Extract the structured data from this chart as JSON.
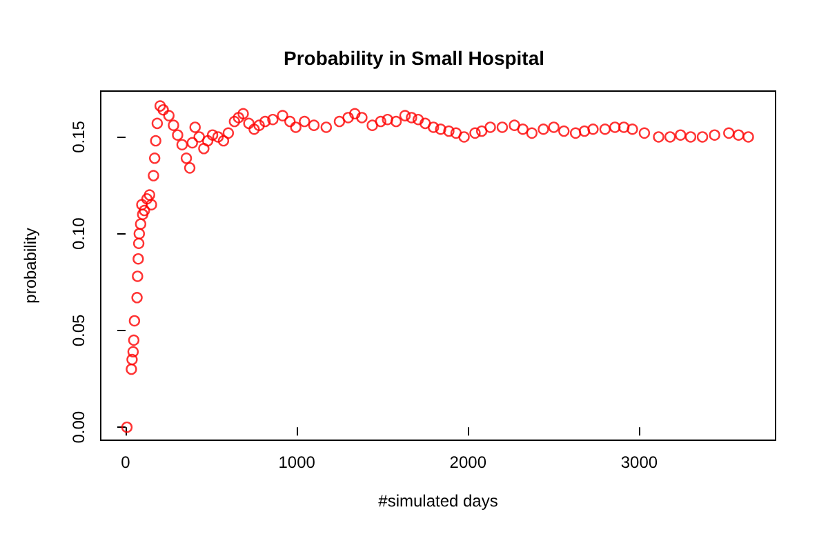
{
  "chart_data": {
    "type": "scatter",
    "title": "Probability in Small Hospital",
    "xlabel": "#simulated days",
    "ylabel": "probability",
    "marker": "circle",
    "x": [
      8,
      34,
      38,
      44,
      48,
      52,
      67,
      70,
      74,
      77,
      80,
      88,
      95,
      100,
      110,
      125,
      140,
      151,
      163,
      170,
      176,
      185,
      202,
      220,
      253,
      280,
      304,
      330,
      355,
      375,
      390,
      406,
      430,
      457,
      480,
      508,
      540,
      572,
      600,
      636,
      660,
      687,
      720,
      751,
      780,
      815,
      860,
      917,
      960,
      994,
      1045,
      1100,
      1172,
      1249,
      1300,
      1339,
      1380,
      1441,
      1490,
      1530,
      1580,
      1632,
      1670,
      1709,
      1750,
      1798,
      1840,
      1888,
      1930,
      1977,
      2041,
      2080,
      2130,
      2200,
      2271,
      2320,
      2373,
      2440,
      2501,
      2560,
      2628,
      2680,
      2730,
      2800,
      2858,
      2910,
      2960,
      3030,
      3113,
      3180,
      3241,
      3300,
      3369,
      3440,
      3523,
      3580,
      3637
    ],
    "series": [
      {
        "color": "#ff0000",
        "values": [
          0,
          0.03,
          0.035,
          0.039,
          0.045,
          0.055,
          0.067,
          0.078,
          0.087,
          0.095,
          0.1,
          0.105,
          0.115,
          0.11,
          0.112,
          0.118,
          0.12,
          0.115,
          0.13,
          0.139,
          0.148,
          0.157,
          0.166,
          0.164,
          0.161,
          0.156,
          0.151,
          0.146,
          0.139,
          0.134,
          0.147,
          0.155,
          0.15,
          0.144,
          0.148,
          0.151,
          0.15,
          0.148,
          0.152,
          0.158,
          0.16,
          0.162,
          0.157,
          0.154,
          0.156,
          0.158,
          0.159,
          0.161,
          0.158,
          0.155,
          0.158,
          0.156,
          0.155,
          0.158,
          0.16,
          0.162,
          0.16,
          0.156,
          0.158,
          0.159,
          0.158,
          0.161,
          0.16,
          0.159,
          0.157,
          0.155,
          0.154,
          0.153,
          0.152,
          0.15,
          0.152,
          0.153,
          0.155,
          0.155,
          0.156,
          0.154,
          0.152,
          0.154,
          0.155,
          0.153,
          0.152,
          0.153,
          0.154,
          0.154,
          0.155,
          0.155,
          0.154,
          0.152,
          0.15,
          0.15,
          0.151,
          0.15,
          0.15,
          0.151,
          0.152,
          0.151,
          0.15
        ]
      }
    ],
    "xlim": [
      -145,
      3796
    ],
    "ylim": [
      -0.0067,
      0.1737
    ],
    "xticks": [
      0,
      1000,
      2000,
      3000
    ],
    "yticks": [
      {
        "value": 0,
        "label": "0.00"
      },
      {
        "value": 0.05,
        "label": "0.05"
      },
      {
        "value": 0.1,
        "label": "0.10"
      },
      {
        "value": 0.15,
        "label": "0.15"
      }
    ]
  }
}
